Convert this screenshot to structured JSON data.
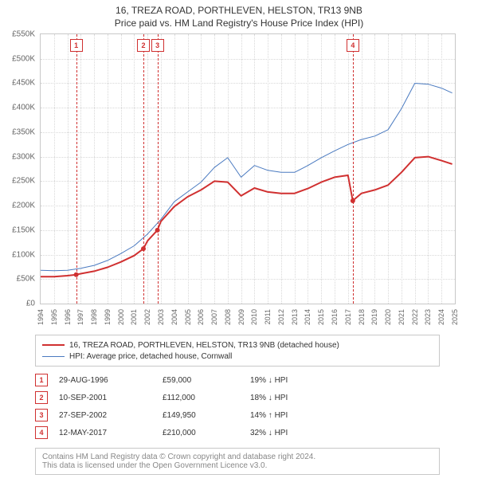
{
  "title_line1": "16, TREZA ROAD, PORTHLEVEN, HELSTON, TR13 9NB",
  "title_line2": "Price paid vs. HM Land Registry's House Price Index (HPI)",
  "chart": {
    "type": "line",
    "x_min": 1994,
    "x_max": 2025,
    "x_ticks": [
      1994,
      1995,
      1996,
      1997,
      1998,
      1999,
      2000,
      2001,
      2002,
      2003,
      2004,
      2005,
      2006,
      2007,
      2008,
      2009,
      2010,
      2011,
      2012,
      2013,
      2014,
      2015,
      2016,
      2017,
      2018,
      2019,
      2020,
      2021,
      2022,
      2023,
      2024,
      2025
    ],
    "y_min": 0,
    "y_max": 550000,
    "y_ticks": [
      0,
      50000,
      100000,
      150000,
      200000,
      250000,
      300000,
      350000,
      400000,
      450000,
      500000,
      550000
    ],
    "y_tick_labels": [
      "£0",
      "£50K",
      "£100K",
      "£150K",
      "£200K",
      "£250K",
      "£300K",
      "£350K",
      "£400K",
      "£450K",
      "£500K",
      "£550K"
    ],
    "grid_color": "#d8d8d8",
    "border_color": "#c8c8c8",
    "background_color": "#ffffff",
    "axis_fontsize": 9,
    "series": [
      {
        "id": "price_paid",
        "label": "16, TREZA ROAD, PORTHLEVEN, HELSTON, TR13 9NB (detached house)",
        "color": "#d03030",
        "line_width": 2,
        "data": [
          [
            1994,
            55000
          ],
          [
            1995,
            55000
          ],
          [
            1996,
            57000
          ],
          [
            1996.66,
            59000
          ],
          [
            1997,
            61000
          ],
          [
            1998,
            66000
          ],
          [
            1999,
            74000
          ],
          [
            2000,
            85000
          ],
          [
            2001,
            98000
          ],
          [
            2001.69,
            112000
          ],
          [
            2002,
            128000
          ],
          [
            2002.74,
            149950
          ],
          [
            2003,
            168000
          ],
          [
            2004,
            198000
          ],
          [
            2005,
            218000
          ],
          [
            2006,
            232000
          ],
          [
            2007,
            250000
          ],
          [
            2008,
            248000
          ],
          [
            2009,
            220000
          ],
          [
            2010,
            236000
          ],
          [
            2011,
            228000
          ],
          [
            2012,
            225000
          ],
          [
            2013,
            225000
          ],
          [
            2014,
            235000
          ],
          [
            2015,
            248000
          ],
          [
            2016,
            258000
          ],
          [
            2017,
            262000
          ],
          [
            2017.36,
            210000
          ],
          [
            2018,
            225000
          ],
          [
            2019,
            232000
          ],
          [
            2020,
            242000
          ],
          [
            2021,
            268000
          ],
          [
            2022,
            298000
          ],
          [
            2023,
            300000
          ],
          [
            2024,
            292000
          ],
          [
            2024.8,
            285000
          ]
        ],
        "markers": [
          {
            "x": 1996.66,
            "y": 59000
          },
          {
            "x": 2001.69,
            "y": 112000
          },
          {
            "x": 2002.74,
            "y": 149950
          },
          {
            "x": 2017.36,
            "y": 210000
          }
        ]
      },
      {
        "id": "hpi",
        "label": "HPI: Average price, detached house, Cornwall",
        "color": "#4a7ac0",
        "line_width": 1,
        "data": [
          [
            1994,
            68000
          ],
          [
            1995,
            67000
          ],
          [
            1996,
            68000
          ],
          [
            1997,
            72000
          ],
          [
            1998,
            78000
          ],
          [
            1999,
            88000
          ],
          [
            2000,
            102000
          ],
          [
            2001,
            118000
          ],
          [
            2002,
            142000
          ],
          [
            2003,
            172000
          ],
          [
            2004,
            208000
          ],
          [
            2005,
            228000
          ],
          [
            2006,
            248000
          ],
          [
            2007,
            278000
          ],
          [
            2008,
            298000
          ],
          [
            2009,
            258000
          ],
          [
            2010,
            282000
          ],
          [
            2011,
            272000
          ],
          [
            2012,
            268000
          ],
          [
            2013,
            268000
          ],
          [
            2014,
            282000
          ],
          [
            2015,
            298000
          ],
          [
            2016,
            312000
          ],
          [
            2017,
            325000
          ],
          [
            2018,
            335000
          ],
          [
            2019,
            342000
          ],
          [
            2020,
            355000
          ],
          [
            2021,
            398000
          ],
          [
            2022,
            450000
          ],
          [
            2023,
            448000
          ],
          [
            2024,
            440000
          ],
          [
            2024.8,
            430000
          ]
        ]
      }
    ],
    "event_markers": [
      {
        "num": "1",
        "x": 1996.66
      },
      {
        "num": "2",
        "x": 2001.69
      },
      {
        "num": "3",
        "x": 2002.74
      },
      {
        "num": "4",
        "x": 2017.36
      }
    ]
  },
  "events": [
    {
      "num": "1",
      "date": "29-AUG-1996",
      "price": "£59,000",
      "diff": "19% ↓ HPI"
    },
    {
      "num": "2",
      "date": "10-SEP-2001",
      "price": "£112,000",
      "diff": "18% ↓ HPI"
    },
    {
      "num": "3",
      "date": "27-SEP-2002",
      "price": "£149,950",
      "diff": "14% ↑ HPI"
    },
    {
      "num": "4",
      "date": "12-MAY-2017",
      "price": "£210,000",
      "diff": "32% ↓ HPI"
    }
  ],
  "attribution": {
    "line1": "Contains HM Land Registry data © Crown copyright and database right 2024.",
    "line2": "This data is licensed under the Open Government Licence v3.0."
  }
}
